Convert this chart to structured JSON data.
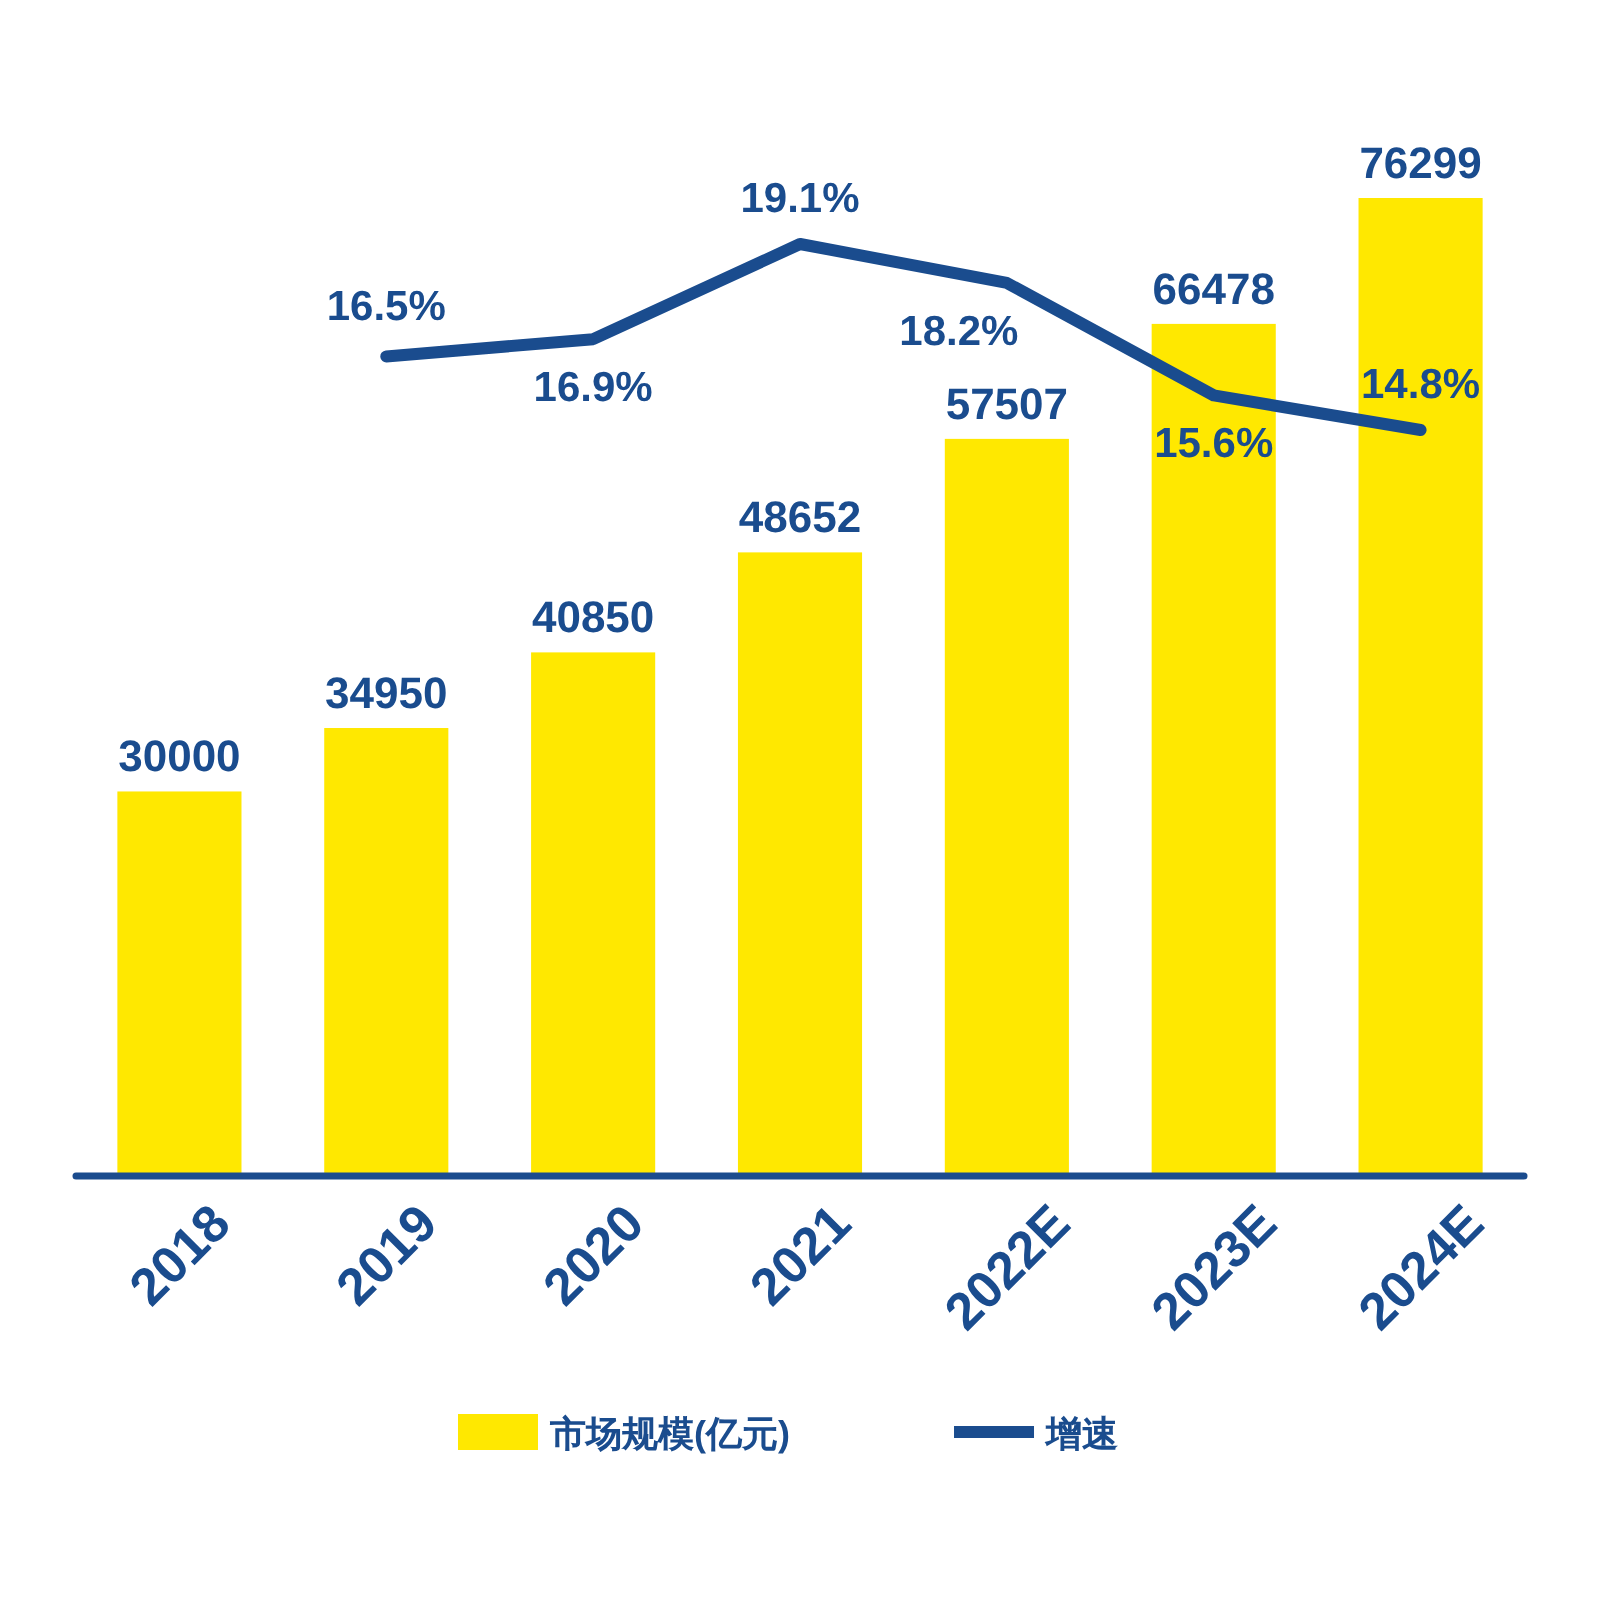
{
  "chart_data": {
    "type": "bar",
    "categories": [
      "2018",
      "2019",
      "2020",
      "2021",
      "2022E",
      "2023E",
      "2024E"
    ],
    "series": [
      {
        "name": "市场规模(亿元)",
        "color": "#ffe800",
        "values": [
          30000,
          34950,
          40850,
          48652,
          57507,
          66478,
          76299
        ]
      },
      {
        "name": "增速",
        "type": "line",
        "axis": "y2",
        "color": "#1a4c8e",
        "values": [
          null,
          16.5,
          16.9,
          19.1,
          18.2,
          15.6,
          14.8
        ],
        "value_labels": [
          null,
          "16.5%",
          "16.9%",
          "19.1%",
          "18.2%",
          "15.6%",
          "14.8%"
        ]
      }
    ],
    "data_labels": true,
    "tick_labels": "x",
    "legend": "bottom"
  }
}
